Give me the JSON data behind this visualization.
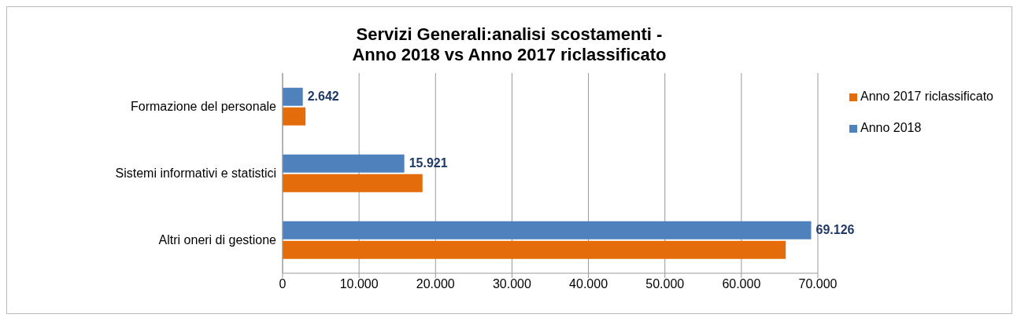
{
  "chart_data": {
    "type": "bar",
    "orientation": "horizontal",
    "title": "Servizi Generali:analisi scostamenti -\nAnno 2018 vs Anno 2017 riclassificato",
    "categories": [
      "Formazione del personale",
      "Sistemi informativi e statistici",
      "Altri oneri di gestione"
    ],
    "series": [
      {
        "name": "Anno 2018",
        "color": "#4f81bd",
        "values": [
          2642,
          15921,
          69126
        ],
        "value_labels": [
          "2.642",
          "15.921",
          "69.126"
        ]
      },
      {
        "name": "Anno 2017 riclassificato",
        "color": "#e46c0a",
        "values": [
          3000,
          18300,
          65800
        ]
      }
    ],
    "xlim": [
      0,
      70000
    ],
    "xticks": [
      {
        "value": 0,
        "label": "0"
      },
      {
        "value": 10000,
        "label": "10.000"
      },
      {
        "value": 20000,
        "label": "20.000"
      },
      {
        "value": 30000,
        "label": "30.000"
      },
      {
        "value": 40000,
        "label": "40.000"
      },
      {
        "value": 50000,
        "label": "50.000"
      },
      {
        "value": 60000,
        "label": "60.000"
      },
      {
        "value": 70000,
        "label": "70.000"
      }
    ],
    "grid": "x",
    "legend": "right"
  }
}
